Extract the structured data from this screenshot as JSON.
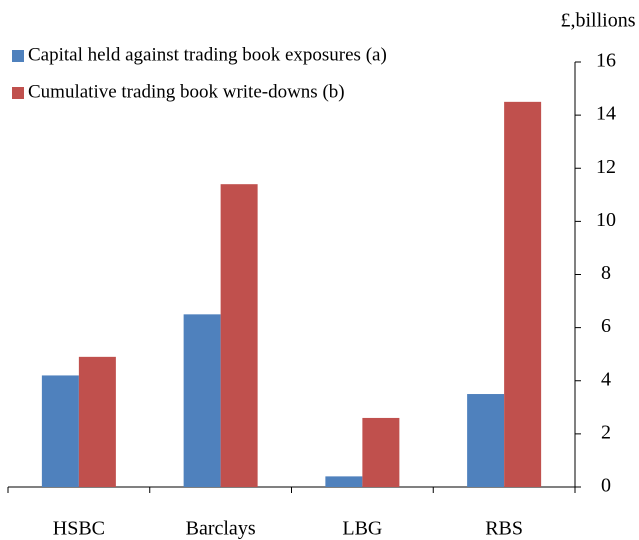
{
  "chart_data": {
    "type": "bar",
    "y_label": "£,billions",
    "categories": [
      "HSBC",
      "Barclays",
      "LBG",
      "RBS"
    ],
    "series": [
      {
        "name": "Capital held against trading book exposures (a)",
        "color": "#4f81bd",
        "values": [
          4.2,
          6.5,
          0.4,
          3.5
        ]
      },
      {
        "name": "Cumulative trading book write-downs (b)",
        "color": "#c0504d",
        "values": [
          4.9,
          11.4,
          2.6,
          14.5
        ]
      }
    ],
    "ylim": [
      0,
      16
    ],
    "yticks": [
      0,
      2,
      4,
      6,
      8,
      10,
      12,
      14,
      16
    ],
    "y_axis_side": "right",
    "legend": "top-left",
    "grid": false
  }
}
